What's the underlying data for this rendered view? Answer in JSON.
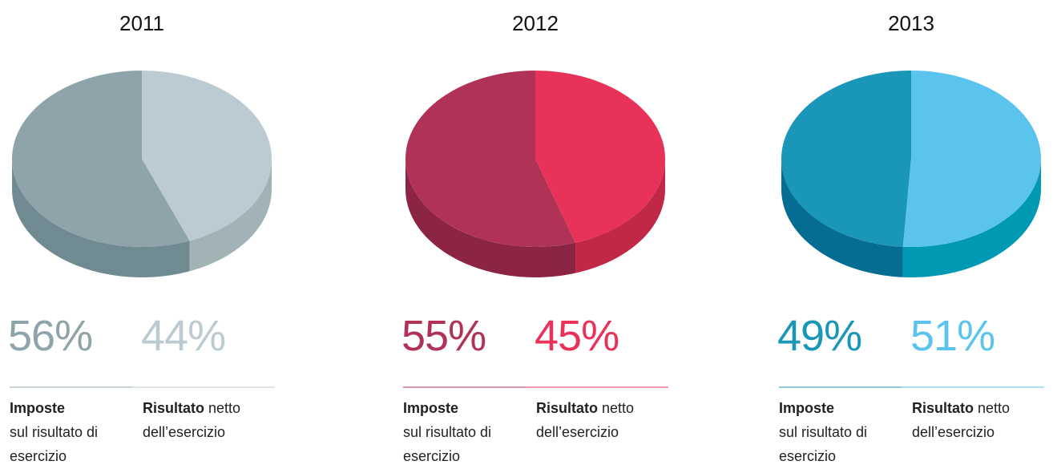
{
  "chart_data": [
    {
      "type": "pie",
      "title": "2011",
      "categories": [
        "Imposte sul risultato di esercizio",
        "Risultato netto dell’esercizio"
      ],
      "values": [
        56,
        44
      ],
      "value_labels": [
        "56%",
        "44%"
      ],
      "colors": [
        "#8fa4aa",
        "#bccbd1"
      ],
      "side_colors": [
        "#6f8a91",
        "#a2b3b8"
      ]
    },
    {
      "type": "pie",
      "title": "2012",
      "categories": [
        "Imposte sul risultato di esercizio",
        "Risultato netto dell’esercizio"
      ],
      "values": [
        55,
        45
      ],
      "value_labels": [
        "55%",
        "45%"
      ],
      "colors": [
        "#b03257",
        "#e8325a"
      ],
      "side_colors": [
        "#8c2444",
        "#c02846"
      ]
    },
    {
      "type": "pie",
      "title": "2013",
      "categories": [
        "Imposte sul risultato di esercizio",
        "Risultato netto dell’esercizio"
      ],
      "values": [
        49,
        51
      ],
      "value_labels": [
        "49%",
        "51%"
      ],
      "colors": [
        "#1a96b8",
        "#5bc4ee"
      ],
      "side_colors": [
        "#046d91",
        "#0099b3"
      ]
    }
  ]
}
